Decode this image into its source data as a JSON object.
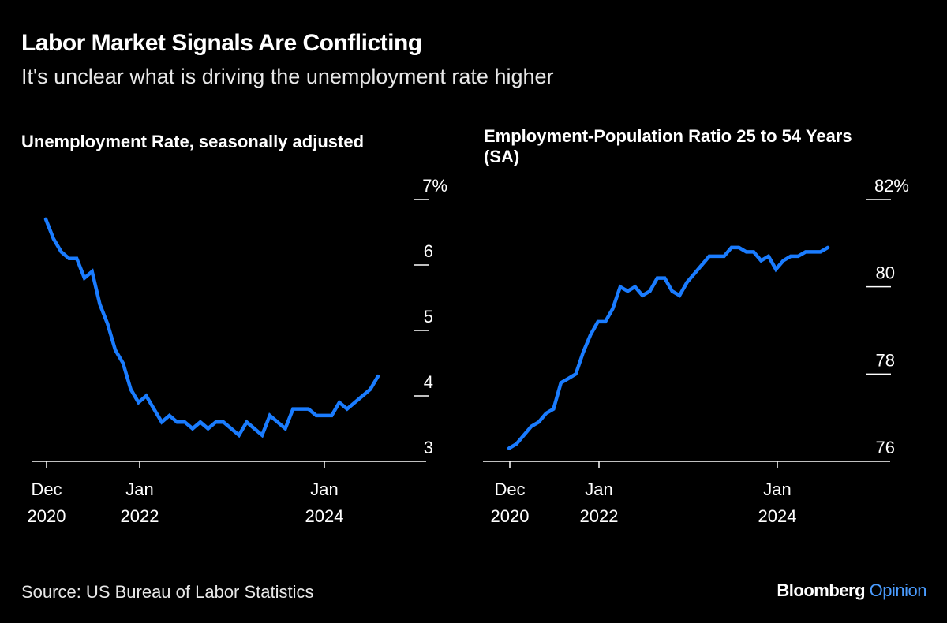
{
  "header": {
    "title": "Labor Market Signals Are Conflicting",
    "subtitle": "It's unclear what is driving the unemployment rate higher"
  },
  "footer": {
    "source": "Source: US Bureau of Labor Statistics",
    "brand": "Bloomberg",
    "brand_suffix": "Opinion"
  },
  "colors": {
    "line": "#1a7cff",
    "background": "#000000",
    "text": "#ffffff"
  },
  "chart_data": [
    {
      "type": "line",
      "title": "Unemployment Rate, seasonally adjusted",
      "x_start": "Dec 2020",
      "x_end": "Jul 2024",
      "frequency": "monthly",
      "x_ticks": [
        {
          "line1": "Dec",
          "line2": "2020",
          "index": 0
        },
        {
          "line1": "Jan",
          "line2": "2022",
          "index": 13
        },
        {
          "line1": "Jan",
          "line2": "2024",
          "index": 37
        }
      ],
      "y_ticks": [
        {
          "value": 7,
          "label": "7%"
        },
        {
          "value": 6,
          "label": "6"
        },
        {
          "value": 5,
          "label": "5"
        },
        {
          "value": 4,
          "label": "4"
        },
        {
          "value": 3,
          "label": "3"
        }
      ],
      "ylim": [
        3,
        7
      ],
      "grid": false,
      "values": [
        6.7,
        6.4,
        6.2,
        6.1,
        6.1,
        5.8,
        5.9,
        5.4,
        5.1,
        4.7,
        4.5,
        4.1,
        3.9,
        4.0,
        3.8,
        3.6,
        3.7,
        3.6,
        3.6,
        3.5,
        3.6,
        3.5,
        3.6,
        3.6,
        3.5,
        3.4,
        3.6,
        3.5,
        3.4,
        3.7,
        3.6,
        3.5,
        3.8,
        3.8,
        3.8,
        3.7,
        3.7,
        3.7,
        3.9,
        3.8,
        3.9,
        4.0,
        4.1,
        4.3
      ]
    },
    {
      "type": "line",
      "title": "Employment-Population Ratio 25 to 54 Years (SA)",
      "x_start": "Dec 2020",
      "x_end": "Jul 2024",
      "frequency": "monthly",
      "x_ticks": [
        {
          "line1": "Dec",
          "line2": "2020",
          "index": 0
        },
        {
          "line1": "Jan",
          "line2": "2022",
          "index": 13
        },
        {
          "line1": "Jan",
          "line2": "2024",
          "index": 37
        }
      ],
      "y_ticks": [
        {
          "value": 82,
          "label": "82%"
        },
        {
          "value": 80,
          "label": "80"
        },
        {
          "value": 78,
          "label": "78"
        },
        {
          "value": 76,
          "label": "76"
        }
      ],
      "ylim": [
        76,
        82
      ],
      "grid": false,
      "values": [
        76.3,
        76.4,
        76.6,
        76.8,
        76.9,
        77.1,
        77.2,
        77.8,
        77.9,
        78.0,
        78.5,
        78.9,
        79.2,
        79.2,
        79.5,
        80.0,
        79.9,
        80.0,
        79.8,
        79.9,
        80.2,
        80.2,
        79.9,
        79.8,
        80.1,
        80.3,
        80.5,
        80.7,
        80.7,
        80.7,
        80.9,
        80.9,
        80.8,
        80.8,
        80.6,
        80.7,
        80.4,
        80.6,
        80.7,
        80.7,
        80.8,
        80.8,
        80.8,
        80.9
      ]
    }
  ]
}
